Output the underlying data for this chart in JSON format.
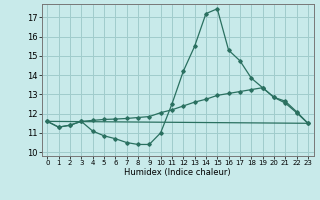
{
  "background_color": "#c8eaea",
  "grid_color": "#a0cccc",
  "line_color": "#2a7060",
  "xlabel": "Humidex (Indice chaleur)",
  "xlim": [
    -0.5,
    23.5
  ],
  "ylim": [
    9.8,
    17.7
  ],
  "yticks": [
    10,
    11,
    12,
    13,
    14,
    15,
    16,
    17
  ],
  "xticks": [
    0,
    1,
    2,
    3,
    4,
    5,
    6,
    7,
    8,
    9,
    10,
    11,
    12,
    13,
    14,
    15,
    16,
    17,
    18,
    19,
    20,
    21,
    22,
    23
  ],
  "line1_x": [
    0,
    1,
    2,
    3,
    4,
    5,
    6,
    7,
    8,
    9,
    10,
    11,
    12,
    13,
    14,
    15,
    16,
    17,
    18,
    19,
    20,
    21,
    22,
    23
  ],
  "line1_y": [
    11.6,
    11.3,
    11.4,
    11.6,
    11.1,
    10.85,
    10.7,
    10.5,
    10.4,
    10.4,
    11.0,
    12.5,
    14.2,
    15.5,
    17.2,
    17.45,
    15.3,
    14.75,
    13.85,
    13.35,
    12.85,
    12.65,
    12.1,
    11.5
  ],
  "line2_x": [
    0,
    1,
    2,
    3,
    4,
    5,
    6,
    7,
    8,
    9,
    10,
    11,
    12,
    13,
    14,
    15,
    16,
    17,
    18,
    19,
    20,
    21,
    22,
    23
  ],
  "line2_y": [
    11.6,
    11.3,
    11.4,
    11.6,
    11.65,
    11.7,
    11.72,
    11.75,
    11.8,
    11.85,
    12.05,
    12.2,
    12.4,
    12.6,
    12.75,
    12.95,
    13.05,
    13.15,
    13.25,
    13.35,
    12.85,
    12.55,
    12.05,
    11.5
  ],
  "line3_x": [
    0,
    23
  ],
  "line3_y": [
    11.6,
    11.5
  ]
}
